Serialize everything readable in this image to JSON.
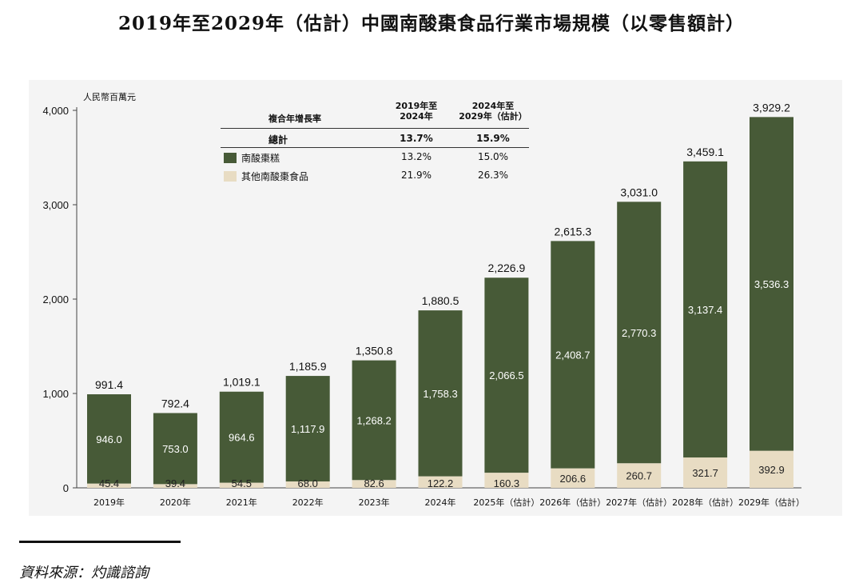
{
  "title": "2019年至2029年（估計）中國南酸棗食品行業市場規模（以零售額計）",
  "source": "資料來源：灼識諮詢",
  "colors": {
    "main": "#475a37",
    "other": "#e8dcc3",
    "panel": "#f4f4f4"
  },
  "cagr_table": {
    "header": {
      "label": "複合年增長率",
      "p1": "2019年至\n2024年",
      "p2": "2024年至\n2029年（估計）"
    },
    "rows": [
      {
        "label": "總計",
        "p1": "13.7%",
        "p2": "15.9%",
        "bold": true
      },
      {
        "label": "南酸棗糕",
        "p1": "13.2%",
        "p2": "15.0%",
        "swatch": "main"
      },
      {
        "label": "其他南酸棗食品",
        "p1": "21.9%",
        "p2": "26.3%",
        "swatch": "other"
      }
    ]
  },
  "chart_data": {
    "type": "bar",
    "stacked": true,
    "ylabel": "人民幣百萬元",
    "ylim": [
      0,
      4000
    ],
    "yticks": [
      "0",
      "1,000",
      "2,000",
      "3,000",
      "4,000"
    ],
    "categories": [
      "2019年",
      "2020年",
      "2021年",
      "2022年",
      "2023年",
      "2024年",
      "2025年（估計）",
      "2026年（估計）",
      "2027年（估計）",
      "2028年（估計）",
      "2029年（估計）"
    ],
    "series": [
      {
        "name": "其他南酸棗食品",
        "values": [
          45.4,
          39.4,
          54.5,
          68.0,
          82.6,
          122.2,
          160.3,
          206.6,
          260.7,
          321.7,
          392.9
        ],
        "labels": [
          "45.4",
          "39.4",
          "54.5",
          "68.0",
          "82.6",
          "122.2",
          "160.3",
          "206.6",
          "260.7",
          "321.7",
          "392.9"
        ]
      },
      {
        "name": "南酸棗糕",
        "values": [
          946.0,
          753.0,
          964.6,
          1117.9,
          1268.2,
          1758.3,
          2066.5,
          2408.7,
          2770.3,
          3137.4,
          3536.3
        ],
        "labels": [
          "946.0",
          "753.0",
          "964.6",
          "1,117.9",
          "1,268.2",
          "1,758.3",
          "2,066.5",
          "2,408.7",
          "2,770.3",
          "3,137.4",
          "3,536.3"
        ]
      }
    ],
    "totals": [
      991.4,
      792.4,
      1019.1,
      1185.9,
      1350.8,
      1880.5,
      2226.9,
      2615.3,
      3031.0,
      3459.1,
      3929.2
    ],
    "total_labels": [
      "991.4",
      "792.4",
      "1,019.1",
      "1,185.9",
      "1,350.8",
      "1,880.5",
      "2,226.9",
      "2,615.3",
      "3,031.0",
      "3,459.1",
      "3,929.2"
    ],
    "grid": false,
    "legend": "in CAGR table, top-left"
  }
}
